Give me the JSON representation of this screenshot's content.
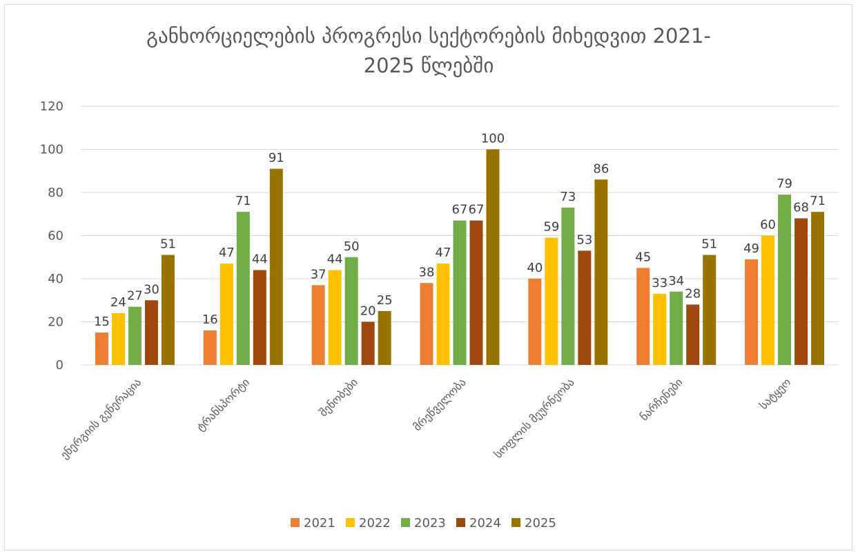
{
  "chart_data": {
    "type": "bar",
    "title": "განხორციელების პროგრესი სექტორების მიხედვით 2021-2025 წლებში",
    "title_lines": [
      "განხორციელების პროგრესი სექტორების მიხედვით 2021-",
      "2025 წლებში"
    ],
    "categories": [
      "ენერგიის გენერაცია",
      "ტრანსპორტი",
      "შენობები",
      "მრეწველობა",
      "სოფლის მეურნეობა",
      "ნარჩენები",
      "სატყეო"
    ],
    "series": [
      {
        "name": "2021",
        "color": "#ED7D31",
        "values": [
          15,
          16,
          37,
          38,
          40,
          45,
          49
        ]
      },
      {
        "name": "2022",
        "color": "#FFC000",
        "values": [
          24,
          47,
          44,
          47,
          59,
          33,
          60
        ]
      },
      {
        "name": "2023",
        "color": "#70AD47",
        "values": [
          27,
          71,
          50,
          67,
          73,
          34,
          79
        ]
      },
      {
        "name": "2024",
        "color": "#9E480E",
        "values": [
          30,
          44,
          20,
          67,
          53,
          28,
          68
        ]
      },
      {
        "name": "2025",
        "color": "#997300",
        "values": [
          51,
          91,
          25,
          100,
          86,
          51,
          71
        ]
      }
    ],
    "ylim": [
      0,
      120
    ],
    "yticks": [
      0,
      20,
      40,
      60,
      80,
      100,
      120
    ],
    "grid": true,
    "legend_position": "bottom"
  }
}
